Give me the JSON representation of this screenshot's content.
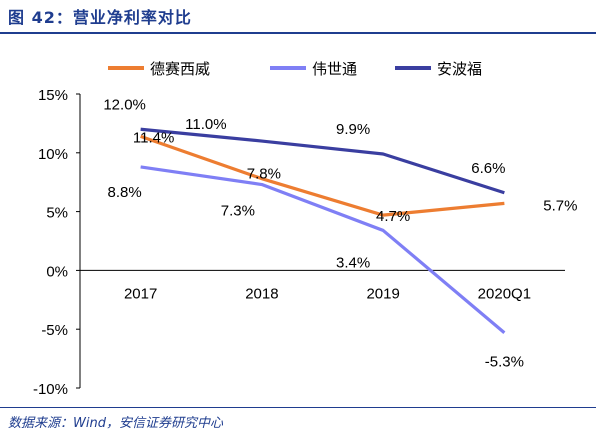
{
  "header": {
    "title": "图 42：营业净利率对比"
  },
  "footer": {
    "source": "数据来源：Wind，安信证券研究中心"
  },
  "chart_data": {
    "type": "line",
    "categories": [
      "2017",
      "2018",
      "2019",
      "2020Q1"
    ],
    "y_ticks": [
      "15%",
      "10%",
      "5%",
      "0%",
      "-5%",
      "-10%"
    ],
    "ylim": [
      -10,
      15
    ],
    "legend_position": "top",
    "series": [
      {
        "name": "德赛西威",
        "color": "#ed7d31",
        "values": [
          11.4,
          7.8,
          4.7,
          5.7
        ],
        "labels": [
          "11.4%",
          "7.8%",
          "4.7%",
          "5.7%"
        ]
      },
      {
        "name": "伟世通",
        "color": "#7f7ff5",
        "values": [
          8.8,
          7.3,
          3.4,
          -5.3
        ],
        "labels": [
          "8.8%",
          "7.3%",
          "3.4%",
          "-5.3%"
        ]
      },
      {
        "name": "安波福",
        "color": "#3a3ea0",
        "values": [
          12.0,
          11.0,
          9.9,
          6.6
        ],
        "labels": [
          "12.0%",
          "11.0%",
          "9.9%",
          "6.6%"
        ]
      }
    ]
  }
}
